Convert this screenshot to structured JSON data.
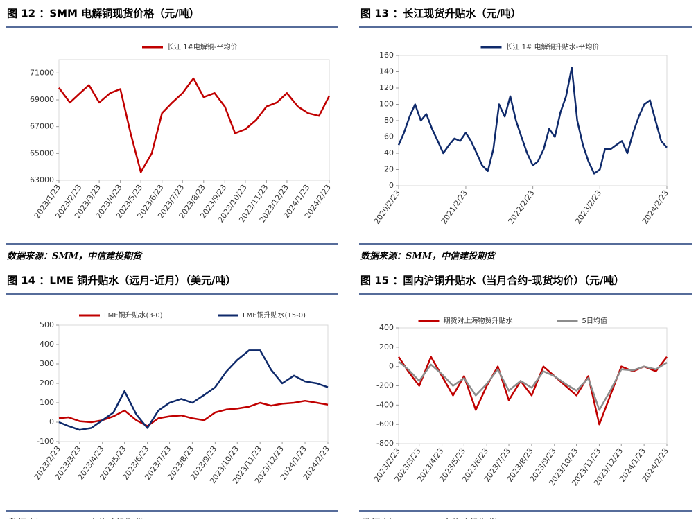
{
  "chart_data": [
    {
      "type": "line",
      "title": "图 12 ：SMM 电解铜现货价格（元/吨）",
      "source": "数据来源：SMM，中信建投期货",
      "x": [
        "2023/1/23",
        "2023/2/8",
        "2023/2/23",
        "2023/3/8",
        "2023/3/23",
        "2023/4/8",
        "2023/4/23",
        "2023/5/8",
        "2023/5/23",
        "2023/6/8",
        "2023/6/23",
        "2023/7/8",
        "2023/7/23",
        "2023/8/8",
        "2023/8/23",
        "2023/9/8",
        "2023/9/23",
        "2023/10/8",
        "2023/10/23",
        "2023/11/8",
        "2023/11/23",
        "2023/12/8",
        "2023/12/23",
        "2024/1/8",
        "2024/1/23",
        "2024/2/8",
        "2024/2/23"
      ],
      "series": [
        {
          "name": "长江 1#电解铜-平均价",
          "color": "#c00000",
          "values": [
            69900,
            68800,
            69500,
            70100,
            68800,
            69500,
            69800,
            66500,
            63600,
            65000,
            68000,
            68800,
            69500,
            70600,
            69200,
            69500,
            68500,
            66500,
            66800,
            67500,
            68500,
            68800,
            69500,
            68500,
            68000,
            67800,
            69300
          ]
        }
      ],
      "xlim": [
        "2023/1/23",
        "2024/2/23"
      ],
      "xticks": [
        "2023/1/23",
        "2023/2/23",
        "2023/3/23",
        "2023/4/23",
        "2023/5/23",
        "2023/6/23",
        "2023/7/23",
        "2023/8/23",
        "2023/9/23",
        "2023/10/23",
        "2023/11/23",
        "2023/12/23",
        "2024/1/23",
        "2024/2/23"
      ],
      "ylim": [
        63000,
        72000
      ],
      "yticks": [
        63000,
        65000,
        67000,
        69000,
        71000
      ]
    },
    {
      "type": "line",
      "title": "图 13 ：长江现货升贴水（元/吨）",
      "source": "数据来源：SMM，中信建投期货",
      "x": [
        "2020/2/23",
        "2020/3/23",
        "2020/4/23",
        "2020/5/23",
        "2020/6/23",
        "2020/7/23",
        "2020/8/23",
        "2020/9/23",
        "2020/10/23",
        "2020/11/23",
        "2020/12/23",
        "2021/1/23",
        "2021/2/23",
        "2021/3/23",
        "2021/4/23",
        "2021/5/23",
        "2021/6/23",
        "2021/7/23",
        "2021/8/23",
        "2021/9/23",
        "2021/10/23",
        "2021/11/23",
        "2021/12/23",
        "2022/1/23",
        "2022/2/23",
        "2022/3/23",
        "2022/4/23",
        "2022/5/23",
        "2022/6/23",
        "2022/7/23",
        "2022/8/23",
        "2022/9/23",
        "2022/10/23",
        "2022/11/23",
        "2022/12/23",
        "2023/1/23",
        "2023/2/23",
        "2023/3/23",
        "2023/4/23",
        "2023/5/23",
        "2023/6/23",
        "2023/7/23",
        "2023/8/23",
        "2023/9/23",
        "2023/10/23",
        "2023/11/23",
        "2023/12/23",
        "2024/1/23",
        "2024/2/23"
      ],
      "series": [
        {
          "name": "长江 1# 电解铜升贴水-平均价",
          "color": "#0f2a6b",
          "values": [
            50,
            65,
            85,
            100,
            80,
            88,
            70,
            55,
            40,
            50,
            58,
            55,
            65,
            55,
            40,
            25,
            18,
            45,
            100,
            85,
            110,
            80,
            60,
            40,
            25,
            30,
            45,
            70,
            60,
            90,
            110,
            145,
            80,
            50,
            30,
            15,
            20,
            45,
            45,
            50,
            55,
            40,
            65,
            85,
            100,
            105,
            80,
            55,
            47
          ]
        }
      ],
      "xlim": [
        "2020/2/23",
        "2024/2/23"
      ],
      "xticks": [
        "2020/2/23",
        "2021/2/23",
        "2022/2/23",
        "2023/2/23",
        "2024/2/23"
      ],
      "ylim": [
        0,
        160
      ],
      "yticks": [
        0,
        20,
        40,
        60,
        80,
        100,
        120,
        140,
        160
      ]
    },
    {
      "type": "line",
      "title": "图 14 ：LME 铜升贴水（远月-近月）（美元/吨）",
      "source": "数据来源：Wind，中信建投期货",
      "x": [
        "2023/2/23",
        "2023/3/8",
        "2023/3/23",
        "2023/4/8",
        "2023/4/23",
        "2023/5/8",
        "2023/5/23",
        "2023/6/8",
        "2023/6/23",
        "2023/7/8",
        "2023/7/23",
        "2023/8/8",
        "2023/8/23",
        "2023/9/8",
        "2023/9/23",
        "2023/10/8",
        "2023/10/23",
        "2023/11/8",
        "2023/11/23",
        "2023/12/8",
        "2023/12/23",
        "2024/1/8",
        "2024/1/23",
        "2024/2/8",
        "2024/2/23"
      ],
      "series": [
        {
          "name": "LME铜升贴水(3-0)",
          "color": "#c00000",
          "values": [
            20,
            25,
            5,
            0,
            10,
            30,
            60,
            10,
            -20,
            20,
            30,
            35,
            20,
            10,
            50,
            65,
            70,
            80,
            100,
            85,
            95,
            100,
            110,
            100,
            90
          ]
        },
        {
          "name": "LME铜升贴水(15-0)",
          "color": "#0f2a6b",
          "values": [
            0,
            -20,
            -40,
            -30,
            10,
            50,
            160,
            40,
            -30,
            60,
            100,
            120,
            100,
            140,
            180,
            260,
            320,
            370,
            370,
            270,
            200,
            240,
            210,
            200,
            180
          ]
        }
      ],
      "xlim": [
        "2023/2/23",
        "2024/2/23"
      ],
      "xticks": [
        "2023/2/23",
        "2023/3/23",
        "2023/4/23",
        "2023/5/23",
        "2023/6/23",
        "2023/7/23",
        "2023/8/23",
        "2023/9/23",
        "2023/10/23",
        "2023/11/23",
        "2023/12/23",
        "2024/1/23",
        "2024/2/23"
      ],
      "ylim": [
        -100,
        500
      ],
      "yticks": [
        -100,
        0,
        100,
        200,
        300,
        400,
        500
      ]
    },
    {
      "type": "line",
      "title": "图 15 ：国内沪铜升贴水（当月合约-现货均价）（元/吨）",
      "source": "数据来源：Wind，中信建投期货",
      "x": [
        "2023/2/23",
        "2023/3/8",
        "2023/3/23",
        "2023/4/8",
        "2023/4/23",
        "2023/5/8",
        "2023/5/23",
        "2023/6/8",
        "2023/6/23",
        "2023/7/8",
        "2023/7/23",
        "2023/8/8",
        "2023/8/23",
        "2023/9/8",
        "2023/9/23",
        "2023/10/8",
        "2023/10/23",
        "2023/11/8",
        "2023/11/23",
        "2023/12/8",
        "2023/12/23",
        "2024/1/8",
        "2024/1/23",
        "2024/2/8",
        "2024/2/23"
      ],
      "series": [
        {
          "name": "期货对上海物贸升贴水",
          "color": "#c00000",
          "values": [
            100,
            -50,
            -200,
            100,
            -100,
            -300,
            -100,
            -450,
            -200,
            0,
            -350,
            -150,
            -300,
            0,
            -100,
            -200,
            -300,
            -100,
            -600,
            -300,
            0,
            -50,
            0,
            -50,
            100
          ]
        },
        {
          "name": "5日均值",
          "color": "#8c8c8c",
          "values": [
            50,
            -30,
            -150,
            20,
            -80,
            -200,
            -120,
            -300,
            -180,
            -30,
            -250,
            -150,
            -220,
            -50,
            -100,
            -180,
            -250,
            -120,
            -450,
            -250,
            -30,
            -40,
            0,
            -30,
            40
          ]
        }
      ],
      "xlim": [
        "2023/2/23",
        "2024/2/23"
      ],
      "xticks": [
        "2023/2/23",
        "2023/3/23",
        "2023/4/23",
        "2023/5/23",
        "2023/6/23",
        "2023/7/23",
        "2023/8/23",
        "2023/9/23",
        "2023/10/23",
        "2023/11/23",
        "2023/12/23",
        "2024/1/23",
        "2024/2/23"
      ],
      "ylim": [
        -800,
        400
      ],
      "yticks": [
        -800,
        -600,
        -400,
        -200,
        0,
        200,
        400
      ]
    }
  ]
}
